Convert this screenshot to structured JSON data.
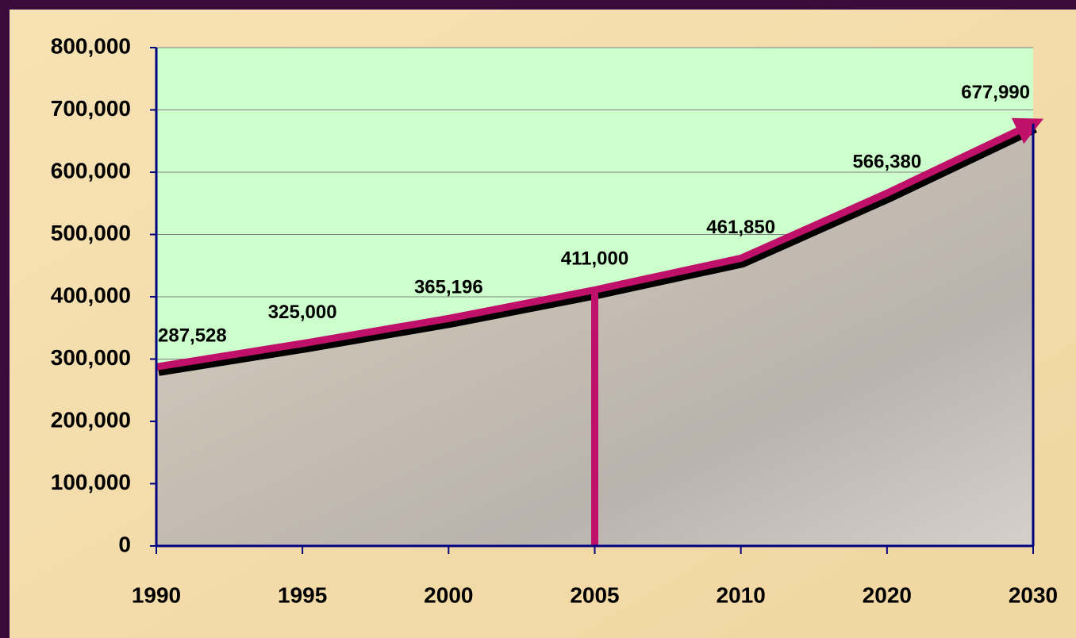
{
  "chart_data": {
    "type": "line",
    "categories": [
      "1990",
      "1995",
      "2000",
      "2005",
      "2010",
      "2020",
      "2030"
    ],
    "values": [
      287528,
      325000,
      365196,
      411000,
      461850,
      566380,
      677990
    ],
    "value_labels": [
      "287,528",
      "325,000",
      "365,196",
      "411,000",
      "461,850",
      "566,380",
      "677,990"
    ],
    "color": "#c0116a",
    "ylim": [
      0,
      800000
    ],
    "yticks": [
      {
        "value": 0,
        "label": "0"
      },
      {
        "value": 100000,
        "label": "100,000"
      },
      {
        "value": 200000,
        "label": "200,000"
      },
      {
        "value": 300000,
        "label": "300,000"
      },
      {
        "value": 400000,
        "label": "400,000"
      },
      {
        "value": 500000,
        "label": "500,000"
      },
      {
        "value": 600000,
        "label": "600,000"
      },
      {
        "value": 700000,
        "label": "700,000"
      },
      {
        "value": 800000,
        "label": "800,000"
      }
    ],
    "grid": true
  }
}
